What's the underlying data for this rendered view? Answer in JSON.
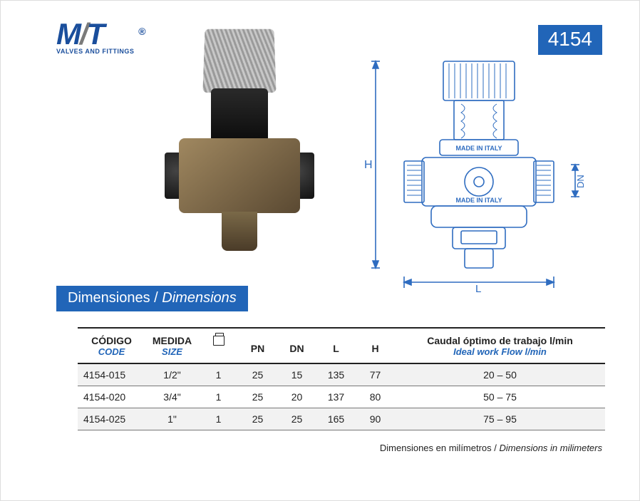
{
  "brand": {
    "name_mt": "MT",
    "tagline": "VALVES AND FITTINGS",
    "registered": "®",
    "color_primary": "#1a4e9c",
    "color_grey": "#7a7a7a"
  },
  "product_code": "4154",
  "badge_bg": "#2165b8",
  "badge_fg": "#ffffff",
  "section": {
    "es": "Dimensiones",
    "sep": " / ",
    "en": "Dimensions"
  },
  "drawing": {
    "stroke": "#2e6cc0",
    "labels": {
      "H": "H",
      "L": "L",
      "DN": "DN"
    },
    "text1": "MADE IN ITALY",
    "text2": "MADE IN ITALY"
  },
  "table": {
    "headers": {
      "codigo": "CÓDIGO",
      "code": "CODE",
      "medida": "MEDIDA",
      "size": "SIZE",
      "pn": "PN",
      "dn": "DN",
      "l": "L",
      "h": "H",
      "caudal_es": "Caudal óptimo de trabajo l/min",
      "caudal_en": "Ideal work Flow l/min"
    },
    "col_widths": [
      "90px",
      "70px",
      "50px",
      "55px",
      "55px",
      "55px",
      "55px",
      "auto"
    ],
    "rows": [
      {
        "code": "4154-015",
        "size": "1/2\"",
        "box": "1",
        "pn": "25",
        "dn": "15",
        "l": "135",
        "h": "77",
        "flow": "20 – 50"
      },
      {
        "code": "4154-020",
        "size": "3/4\"",
        "box": "1",
        "pn": "25",
        "dn": "20",
        "l": "137",
        "h": "80",
        "flow": "50 – 75"
      },
      {
        "code": "4154-025",
        "size": "1\"",
        "box": "1",
        "pn": "25",
        "dn": "25",
        "l": "165",
        "h": "90",
        "flow": "75 – 95"
      }
    ]
  },
  "footnote": {
    "es": "Dimensiones en milímetros",
    "sep": " / ",
    "en": "Dimensions in milimeters"
  }
}
